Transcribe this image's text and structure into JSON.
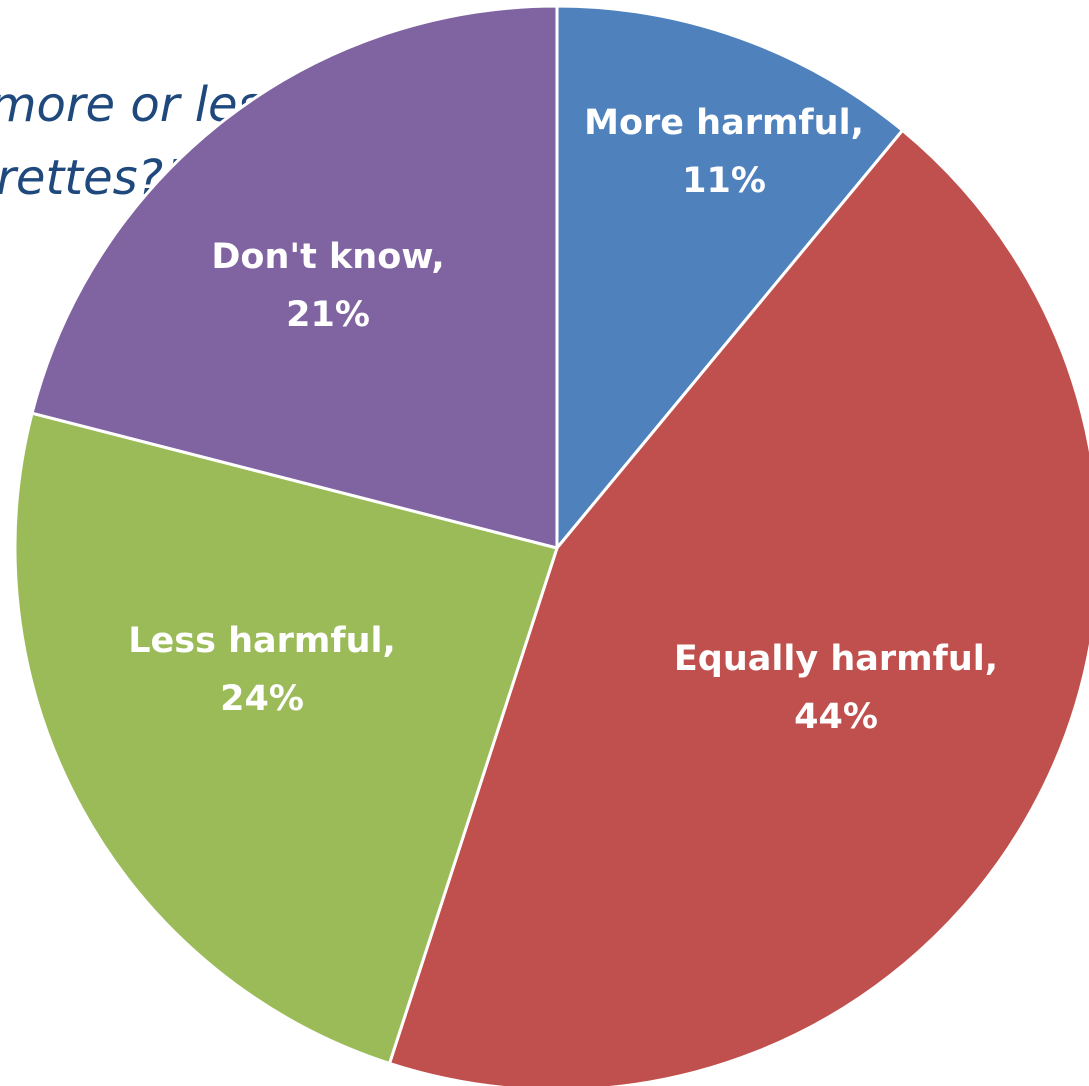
{
  "question": {
    "line1": "“Are e-cigarettes more or less",
    "line2": "harmful than cigarettes?”"
  },
  "chart_data": {
    "type": "pie",
    "title": "",
    "start_angle_deg": 0,
    "direction": "clockwise",
    "slices": [
      {
        "label": "More harmful",
        "value": 11,
        "display": "11%",
        "color": "#4f81bd"
      },
      {
        "label": "Equally harmful",
        "value": 44,
        "display": "44%",
        "color": "#c0504d"
      },
      {
        "label": "Less harmful",
        "value": 24,
        "display": "24%",
        "color": "#9bbb59"
      },
      {
        "label": "Don't know",
        "value": 21,
        "display": "21%",
        "color": "#8064a2"
      }
    ],
    "data_labels": "inside",
    "slice_border_color": "#ffffff"
  }
}
